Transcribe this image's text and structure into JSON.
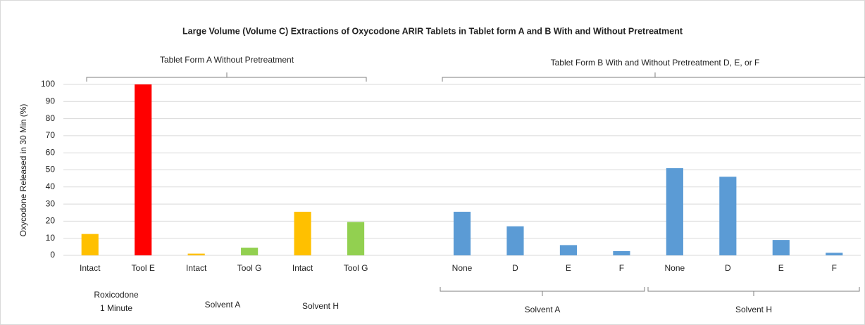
{
  "chart_data": {
    "type": "bar",
    "title": "Large Volume (Volume C) Extractions of Oxycodone ARIR Tablets in Tablet form A and B With and Without Pretreatment",
    "ylabel": "Oxycodone Released in 30 Min (%)",
    "categories": [
      "Intact",
      "Tool E",
      "Intact",
      "Tool G",
      "Intact",
      "Tool G",
      null,
      "None",
      "D",
      "E",
      "F",
      "None",
      "D",
      "E",
      "F"
    ],
    "values": [
      12.5,
      100,
      1,
      4.5,
      25.5,
      19.5,
      null,
      25.5,
      17,
      6,
      2.5,
      51,
      46,
      9,
      1.5
    ],
    "colors": [
      "#ffc000",
      "#ff0000",
      "#ffc000",
      "#92d050",
      "#ffc000",
      "#92d050",
      null,
      "#5b9bd5",
      "#5b9bd5",
      "#5b9bd5",
      "#5b9bd5",
      "#5b9bd5",
      "#5b9bd5",
      "#5b9bd5",
      "#5b9bd5"
    ],
    "ylim": [
      0,
      100
    ],
    "yticks": [
      0,
      10,
      20,
      30,
      40,
      50,
      60,
      70,
      80,
      90,
      100
    ],
    "grid": true,
    "top_groups": [
      "Tablet Form A Without Pretreatment",
      "Tablet Form B With and Without Pretreatment D, E, or F"
    ],
    "bottom_groups": [
      {
        "lines": [
          "Roxicodone",
          "1 Minute"
        ]
      },
      {
        "lines": [
          "Solvent A"
        ]
      },
      {
        "lines": [
          "Solvent H"
        ]
      },
      {
        "lines": [
          "Solvent A"
        ]
      },
      {
        "lines": [
          "Solvent H"
        ]
      }
    ]
  }
}
